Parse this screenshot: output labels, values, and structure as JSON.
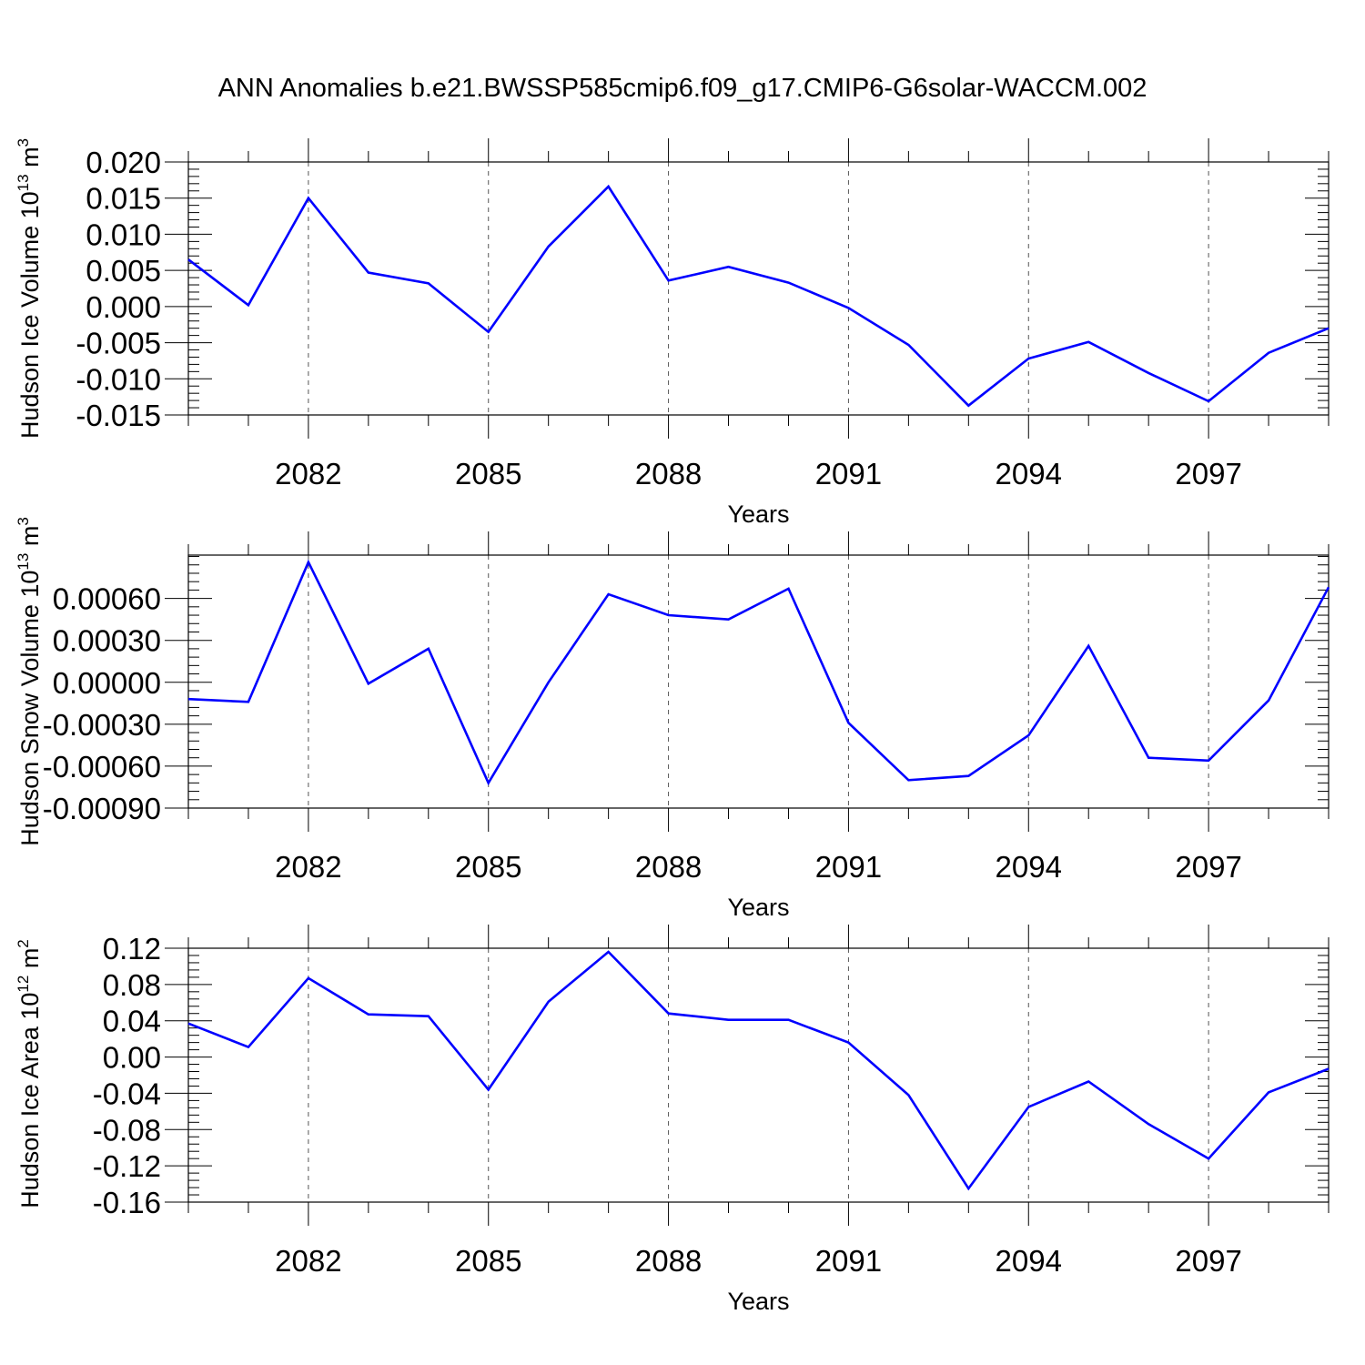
{
  "title": "ANN Anomalies b.e21.BWSSP585cmip6.f09_g17.CMIP6-G6solar-WACCM.002",
  "colors": {
    "line": "#0000ff",
    "axis": "#000000",
    "grid": "#555555"
  },
  "chart_data": [
    {
      "type": "line",
      "title": "",
      "xlabel": "Years",
      "ylabel": "Hudson Ice Volume 10",
      "ylabel_exponent": "13",
      "ylabel_unit": "m",
      "ylabel_unit_exponent": "3",
      "xlim": [
        2080,
        2099
      ],
      "ylim": [
        -0.015,
        0.02
      ],
      "x_ticks": [
        2082,
        2085,
        2088,
        2091,
        2094,
        2097
      ],
      "y_ticks": [
        "-0.015",
        "-0.010",
        "-0.005",
        "0.000",
        "0.005",
        "0.010",
        "0.015",
        "0.020"
      ],
      "grid": "vertical dashed at x ticks",
      "x": [
        2080,
        2081,
        2082,
        2083,
        2084,
        2085,
        2086,
        2087,
        2088,
        2089,
        2090,
        2091,
        2092,
        2093,
        2094,
        2095,
        2096,
        2097,
        2098,
        2099
      ],
      "values": [
        0.0065,
        0.0002,
        0.015,
        0.0047,
        0.0032,
        -0.0035,
        0.0083,
        0.0166,
        0.0036,
        0.0055,
        0.0033,
        -0.0002,
        -0.0053,
        -0.0137,
        -0.0072,
        -0.0049,
        -0.0092,
        -0.0131,
        -0.0064,
        -0.003
      ]
    },
    {
      "type": "line",
      "title": "",
      "xlabel": "Years",
      "ylabel": "Hudson Snow Volume 10",
      "ylabel_exponent": "13",
      "ylabel_unit": "m",
      "ylabel_unit_exponent": "3",
      "xlim": [
        2080,
        2099
      ],
      "ylim": [
        -0.0009,
        0.00091
      ],
      "x_ticks": [
        2082,
        2085,
        2088,
        2091,
        2094,
        2097
      ],
      "y_ticks": [
        "-0.00090",
        "-0.00060",
        "-0.00030",
        "0.00000",
        "0.00030",
        "0.00060"
      ],
      "grid": "vertical dashed at x ticks",
      "x": [
        2080,
        2081,
        2082,
        2083,
        2084,
        2085,
        2086,
        2087,
        2088,
        2089,
        2090,
        2091,
        2092,
        2093,
        2094,
        2095,
        2096,
        2097,
        2098,
        2099
      ],
      "values": [
        -0.00012,
        -0.00014,
        0.00086,
        -1e-05,
        0.00024,
        -0.00072,
        0.0,
        0.00063,
        0.00048,
        0.00045,
        0.00067,
        -0.00029,
        -0.0007,
        -0.00067,
        -0.00038,
        0.00026,
        -0.00054,
        -0.00056,
        -0.00013,
        0.00068
      ]
    },
    {
      "type": "line",
      "title": "",
      "xlabel": "Years",
      "ylabel": "Hudson Ice Area 10",
      "ylabel_exponent": "12",
      "ylabel_unit": "m",
      "ylabel_unit_exponent": "2",
      "xlim": [
        2080,
        2099
      ],
      "ylim": [
        -0.16,
        0.12
      ],
      "x_ticks": [
        2082,
        2085,
        2088,
        2091,
        2094,
        2097
      ],
      "y_ticks": [
        "-0.16",
        "-0.12",
        "-0.08",
        "-0.04",
        "0.00",
        "0.04",
        "0.08",
        "0.12"
      ],
      "grid": "vertical dashed at x ticks",
      "x": [
        2080,
        2081,
        2082,
        2083,
        2084,
        2085,
        2086,
        2087,
        2088,
        2089,
        2090,
        2091,
        2092,
        2093,
        2094,
        2095,
        2096,
        2097,
        2098,
        2099
      ],
      "values": [
        0.037,
        0.011,
        0.087,
        0.047,
        0.045,
        -0.036,
        0.061,
        0.116,
        0.048,
        0.041,
        0.041,
        0.016,
        -0.042,
        -0.145,
        -0.055,
        -0.027,
        -0.074,
        -0.112,
        -0.039,
        -0.013
      ]
    }
  ]
}
